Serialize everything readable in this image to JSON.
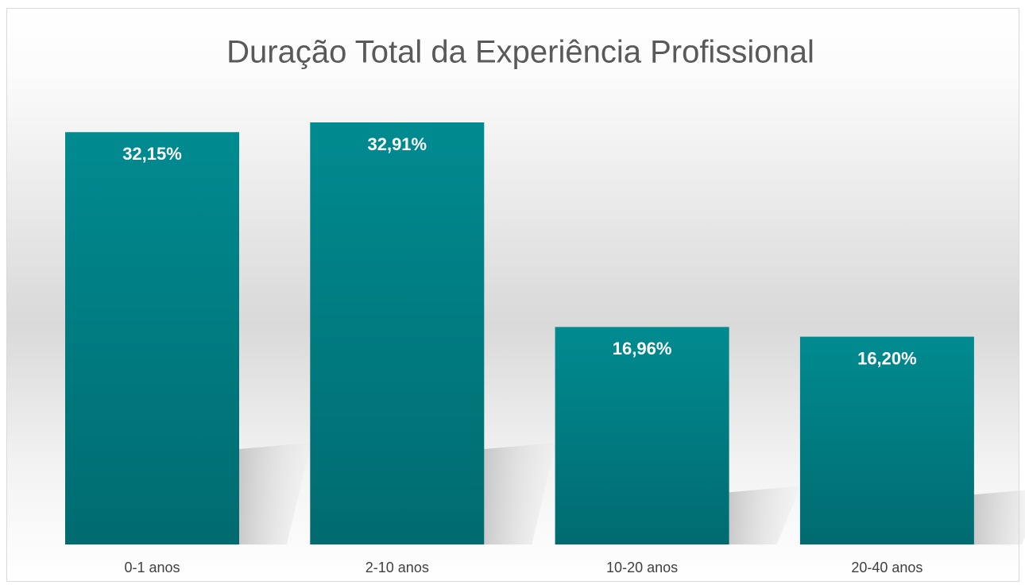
{
  "chart_data": {
    "type": "bar",
    "title": "Duração Total da Experiência Profissional",
    "categories": [
      "0-1 anos",
      "2-10 anos",
      "10-20 anos",
      "20-40 anos"
    ],
    "values": [
      32.15,
      32.91,
      16.96,
      16.2
    ],
    "value_labels": [
      "32,15%",
      "32,91%",
      "16,96%",
      "16,20%"
    ],
    "color": "#00868a"
  }
}
